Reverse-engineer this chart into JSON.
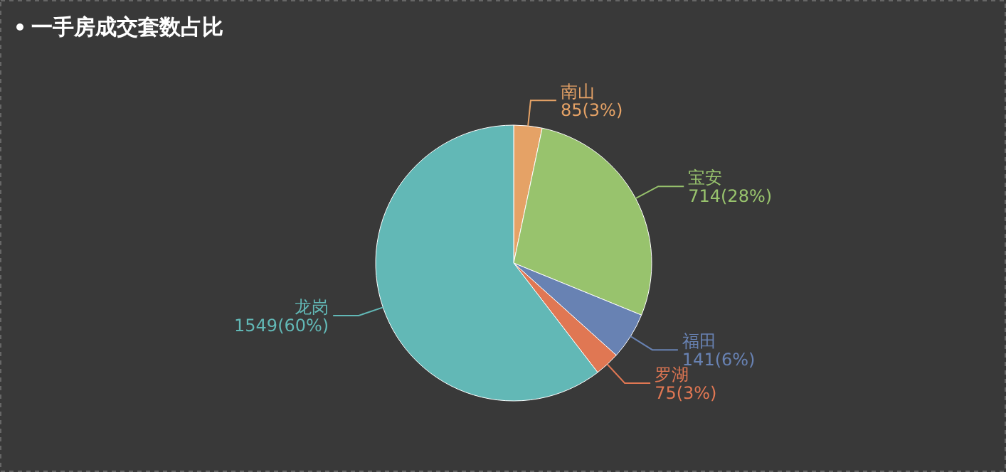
{
  "chart_data": {
    "type": "pie",
    "title": "一手房成交套数占比",
    "categories": [
      "南山",
      "宝安",
      "福田",
      "罗湖",
      "龙岗"
    ],
    "values": [
      85,
      714,
      141,
      75,
      1549
    ],
    "colors": [
      "#e5a266",
      "#98c36d",
      "#6882b3",
      "#e07753",
      "#62b8b6"
    ],
    "value_labels": [
      "85(3%)",
      "714(28%)",
      "141(6%)",
      "75(3%)",
      "1549(60%)"
    ]
  }
}
